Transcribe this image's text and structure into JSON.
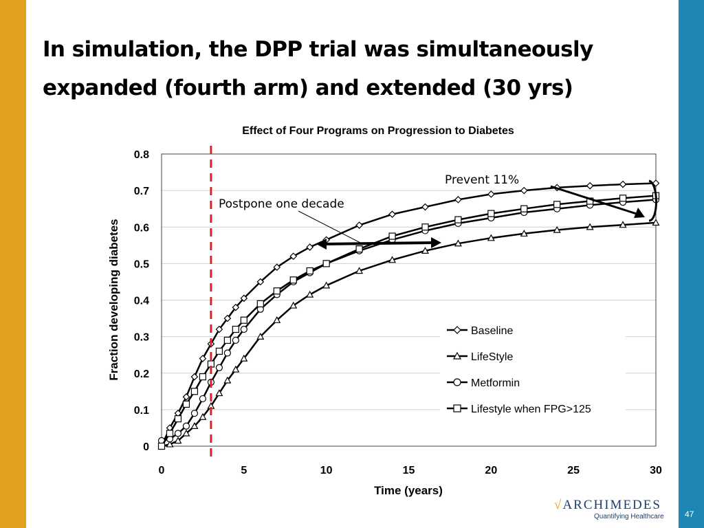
{
  "slide": {
    "title": "In simulation, the DPP trial was simultaneously expanded (fourth arm) and extended (30 yrs)",
    "page_number": "47",
    "colors": {
      "left_bar": "#E2A11C",
      "right_bar": "#1E86B3",
      "marker_line": "#E02020"
    }
  },
  "logo": {
    "check_glyph": "√",
    "name": "ARCHIMEDES",
    "tagline": "Quantifying Healthcare"
  },
  "chart_data": {
    "type": "line",
    "title": "Effect of Four Programs on Progression to Diabetes",
    "xlabel": "Time (years)",
    "ylabel": "Fraction developing diabetes",
    "xlim": [
      0,
      30
    ],
    "ylim": [
      0,
      0.8
    ],
    "xticks": [
      0,
      5,
      10,
      15,
      20,
      25,
      30
    ],
    "yticks": [
      0,
      0.1,
      0.2,
      0.3,
      0.4,
      0.5,
      0.6,
      0.7,
      0.8
    ],
    "ytick_labels": [
      "0",
      "0.1",
      "0.2",
      "0.3",
      "0.4",
      "0.5",
      "0.6",
      "0.7",
      "0.8"
    ],
    "grid": true,
    "legend": "lower-right",
    "vertical_marker_x": 3,
    "x": [
      0,
      0.5,
      1,
      1.5,
      2,
      2.5,
      3,
      3.5,
      4,
      4.5,
      5,
      6,
      7,
      8,
      9,
      10,
      12,
      14,
      16,
      18,
      20,
      22,
      24,
      26,
      28,
      30
    ],
    "series": [
      {
        "name": "Baseline",
        "marker": "diamond",
        "values": [
          0.0,
          0.05,
          0.09,
          0.135,
          0.19,
          0.24,
          0.28,
          0.32,
          0.35,
          0.38,
          0.405,
          0.45,
          0.49,
          0.52,
          0.545,
          0.565,
          0.605,
          0.635,
          0.655,
          0.675,
          0.69,
          0.7,
          0.708,
          0.713,
          0.717,
          0.72
        ]
      },
      {
        "name": "LifeStyle",
        "marker": "triangle",
        "values": [
          0.0,
          0.005,
          0.015,
          0.035,
          0.055,
          0.08,
          0.11,
          0.145,
          0.18,
          0.21,
          0.24,
          0.3,
          0.345,
          0.385,
          0.415,
          0.44,
          0.48,
          0.51,
          0.535,
          0.555,
          0.57,
          0.582,
          0.592,
          0.6,
          0.606,
          0.612
        ]
      },
      {
        "name": "Metformin",
        "marker": "circle",
        "values": [
          0.015,
          0.02,
          0.035,
          0.055,
          0.09,
          0.13,
          0.175,
          0.215,
          0.255,
          0.29,
          0.32,
          0.375,
          0.415,
          0.45,
          0.475,
          0.5,
          0.535,
          0.565,
          0.59,
          0.61,
          0.625,
          0.64,
          0.65,
          0.66,
          0.668,
          0.675
        ]
      },
      {
        "name": "Lifestyle when FPG>125",
        "marker": "square",
        "values": [
          0.0,
          0.035,
          0.075,
          0.115,
          0.15,
          0.19,
          0.225,
          0.26,
          0.29,
          0.32,
          0.345,
          0.39,
          0.425,
          0.455,
          0.48,
          0.5,
          0.54,
          0.575,
          0.6,
          0.62,
          0.637,
          0.65,
          0.662,
          0.671,
          0.679,
          0.686
        ]
      }
    ],
    "annotations": [
      {
        "text": "Postpone one decade"
      },
      {
        "text": "Prevent 11%"
      }
    ]
  }
}
